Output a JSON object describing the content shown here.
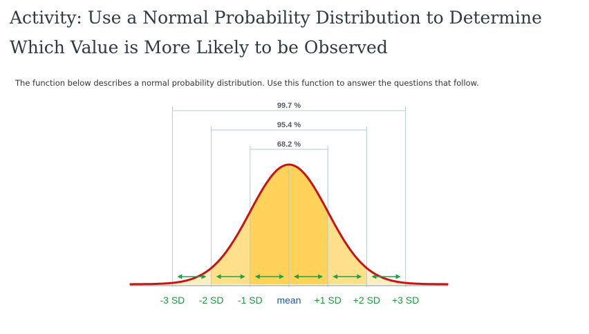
{
  "page": {
    "title_line1": "Activity: Use a Normal Probability Distribution to Determine",
    "title_line2": "Which Value is More Likely to be Observed",
    "intro": "The function below describes a normal probability distribution. Use this function to answer the questions that follow."
  },
  "chart_data": {
    "type": "area",
    "distribution": "normal",
    "mean": 0,
    "sd": 1,
    "xlim": [
      -4.1,
      4.1
    ],
    "categories": [
      "-3 SD",
      "-2 SD",
      "-1 SD",
      "mean",
      "+1 SD",
      "+2 SD",
      "+3 SD"
    ],
    "tick_values": [
      -3,
      -2,
      -1,
      0,
      1,
      2,
      3
    ],
    "intervals": [
      {
        "label": "99.7 %",
        "from": -3,
        "to": 3
      },
      {
        "label": "95.4 %",
        "from": -2,
        "to": 2
      },
      {
        "label": "68.2 %",
        "from": -1,
        "to": 1
      }
    ],
    "colors": {
      "curve": "#cc1111",
      "band1": "#ffd35a",
      "band2": "#ffe08a",
      "band3": "#ffeec2",
      "arrows": "#22a045",
      "sd_label": "#1c9a3c",
      "mean_label": "#1a56b0",
      "guide": "#b7c9cc",
      "axis": "#b0b0b0"
    }
  }
}
